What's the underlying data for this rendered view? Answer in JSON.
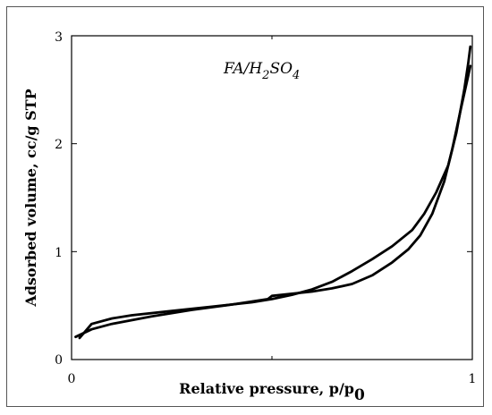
{
  "chart_data": {
    "type": "line",
    "xlabel_main": "Relative pressure, p/p",
    "xlabel_sub": "0",
    "ylabel": "Adsorbed volume, cc/g STP",
    "annotation": {
      "main": "FA/H",
      "sub1": "2",
      "mid": "SO",
      "sub2": "4"
    },
    "xlim": [
      0,
      1
    ],
    "ylim": [
      0,
      3
    ],
    "x_ticks": [
      "0",
      "1"
    ],
    "y_ticks": [
      "0",
      "1",
      "2",
      "3"
    ],
    "grid": false,
    "series": [
      {
        "x": [
          0.01,
          0.05,
          0.1,
          0.2,
          0.3,
          0.4,
          0.49,
          0.5,
          0.55,
          0.6,
          0.65,
          0.7,
          0.75,
          0.8,
          0.84,
          0.87,
          0.9,
          0.93,
          0.95,
          0.97,
          0.985,
          0.995
        ],
        "y": [
          0.21,
          0.28,
          0.33,
          0.4,
          0.46,
          0.51,
          0.56,
          0.59,
          0.61,
          0.63,
          0.66,
          0.7,
          0.78,
          0.9,
          1.02,
          1.15,
          1.35,
          1.65,
          1.95,
          2.3,
          2.55,
          2.72
        ]
      },
      {
        "x": [
          0.995,
          0.99,
          0.98,
          0.96,
          0.94,
          0.91,
          0.88,
          0.85,
          0.8,
          0.75,
          0.7,
          0.65,
          0.6,
          0.55,
          0.5,
          0.45,
          0.35,
          0.25,
          0.15,
          0.1,
          0.05,
          0.02
        ],
        "y": [
          2.9,
          2.75,
          2.5,
          2.1,
          1.8,
          1.55,
          1.35,
          1.2,
          1.05,
          0.93,
          0.82,
          0.72,
          0.65,
          0.6,
          0.56,
          0.53,
          0.49,
          0.45,
          0.41,
          0.38,
          0.33,
          0.2
        ]
      }
    ]
  }
}
